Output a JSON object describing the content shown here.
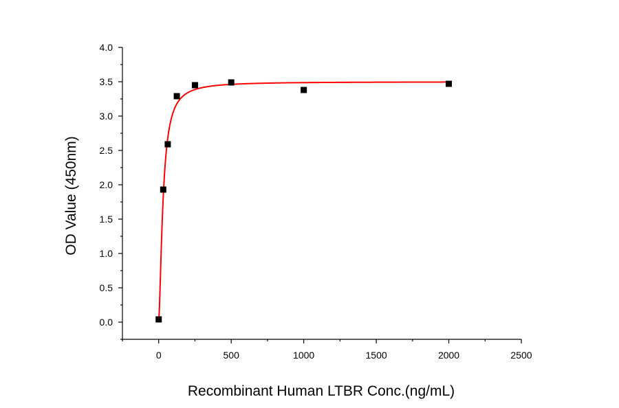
{
  "chart_data": {
    "type": "scatter",
    "title": "",
    "xlabel": "Recombinant Human LTBR Conc.(ng/mL)",
    "ylabel": "OD Value (450nm)",
    "xlim": [
      -250,
      2500
    ],
    "ylim": [
      -0.25,
      4.0
    ],
    "x_ticks": [
      0,
      500,
      1000,
      1500,
      2000,
      2500
    ],
    "x_tick_labels": [
      "0",
      "500",
      "1000",
      "1500",
      "2000",
      "2500"
    ],
    "y_ticks": [
      0.0,
      0.5,
      1.0,
      1.5,
      2.0,
      2.5,
      3.0,
      3.5,
      4.0
    ],
    "y_tick_labels": [
      "0.0",
      "0.5",
      "1.0",
      "1.5",
      "2.0",
      "2.5",
      "3.0",
      "3.5",
      "4.0"
    ],
    "grid": false,
    "legend": "none",
    "series": [
      {
        "kind": "points",
        "marker": "square",
        "color": "#000000",
        "x": [
          0,
          31.25,
          62.5,
          125,
          250,
          500,
          1000,
          2000
        ],
        "y": [
          0.04,
          1.93,
          2.59,
          3.29,
          3.45,
          3.49,
          3.38,
          3.47
        ]
      },
      {
        "kind": "fit-curve",
        "color": "#ff0000",
        "model": "4PL",
        "bottom": 0.02,
        "top": 3.5,
        "ec50": 30,
        "hill": 1.6
      }
    ]
  }
}
